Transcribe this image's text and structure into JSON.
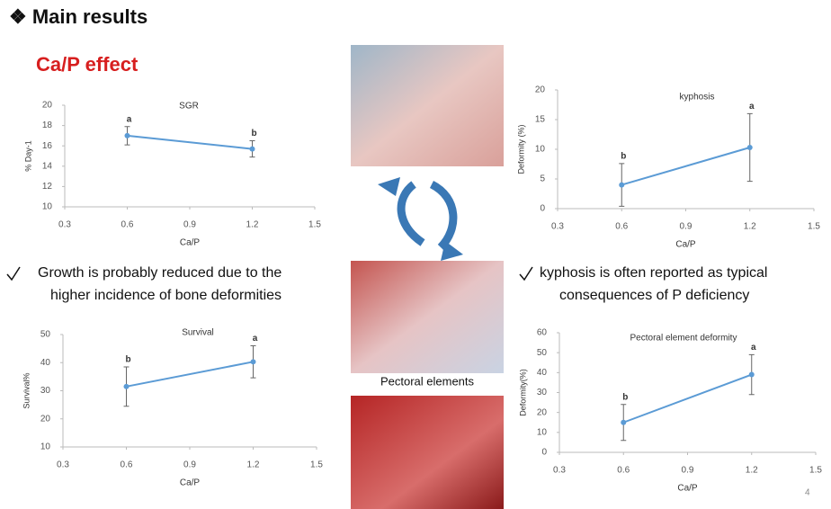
{
  "slide": {
    "heading": "❖ Main results",
    "subheading": "Ca/P effect",
    "left_bullet": [
      "Growth is probably reduced due to the",
      "higher incidence of bone deformities"
    ],
    "right_bullet": [
      "kyphosis is often reported as typical",
      "consequences of P deficiency"
    ],
    "image_caption": "Pectoral elements",
    "page_number": 4
  },
  "chart_data": [
    {
      "type": "line",
      "title": "SGR",
      "x_label": "Ca/P",
      "y_label": "% Day-1",
      "x": [
        0.6,
        1.2
      ],
      "series": [
        {
          "color": "#5b9bd5",
          "values": [
            17.0,
            15.7
          ],
          "errors": [
            0.9,
            0.8
          ],
          "annotations": [
            "a",
            "b"
          ]
        }
      ],
      "xlim": [
        0.3,
        1.5
      ],
      "xticks": [
        0.3,
        0.6,
        0.9,
        1.2,
        1.5
      ],
      "ylim": [
        10,
        20
      ],
      "yticks": [
        10,
        12,
        14,
        16,
        18,
        20
      ]
    },
    {
      "type": "line",
      "title": "kyphosis",
      "x_label": "Ca/P",
      "y_label": "Deformity (%)",
      "x": [
        0.6,
        1.2
      ],
      "series": [
        {
          "color": "#5b9bd5",
          "values": [
            4.0,
            10.3
          ],
          "errors": [
            3.6,
            5.7
          ],
          "annotations": [
            "b",
            "a"
          ]
        }
      ],
      "xlim": [
        0.3,
        1.5
      ],
      "xticks": [
        0.3,
        0.6,
        0.9,
        1.2,
        1.5
      ],
      "ylim": [
        0,
        20
      ],
      "yticks": [
        0,
        5,
        10,
        15,
        20
      ]
    },
    {
      "type": "line",
      "title": "Survival",
      "x_label": "Ca/P",
      "y_label": "Survival%",
      "x": [
        0.6,
        1.2
      ],
      "series": [
        {
          "color": "#5b9bd5",
          "values": [
            31.5,
            40.3
          ],
          "errors": [
            7.0,
            5.7
          ],
          "annotations": [
            "b",
            "a"
          ]
        }
      ],
      "xlim": [
        0.3,
        1.5
      ],
      "xticks": [
        0.3,
        0.6,
        0.9,
        1.2,
        1.5
      ],
      "ylim": [
        10,
        50
      ],
      "yticks": [
        10,
        20,
        30,
        40,
        50
      ]
    },
    {
      "type": "line",
      "title": "Pectoral element deformity",
      "x_label": "Ca/P",
      "y_label": "Deformity(%)",
      "x": [
        0.6,
        1.2
      ],
      "series": [
        {
          "color": "#5b9bd5",
          "values": [
            15,
            39
          ],
          "errors": [
            9,
            10
          ],
          "annotations": [
            "b",
            "a"
          ]
        }
      ],
      "xlim": [
        0.3,
        1.5
      ],
      "xticks": [
        0.3,
        0.6,
        0.9,
        1.2,
        1.5
      ],
      "ylim": [
        0,
        60
      ],
      "yticks": [
        0,
        10,
        20,
        30,
        40,
        50,
        60
      ]
    }
  ]
}
